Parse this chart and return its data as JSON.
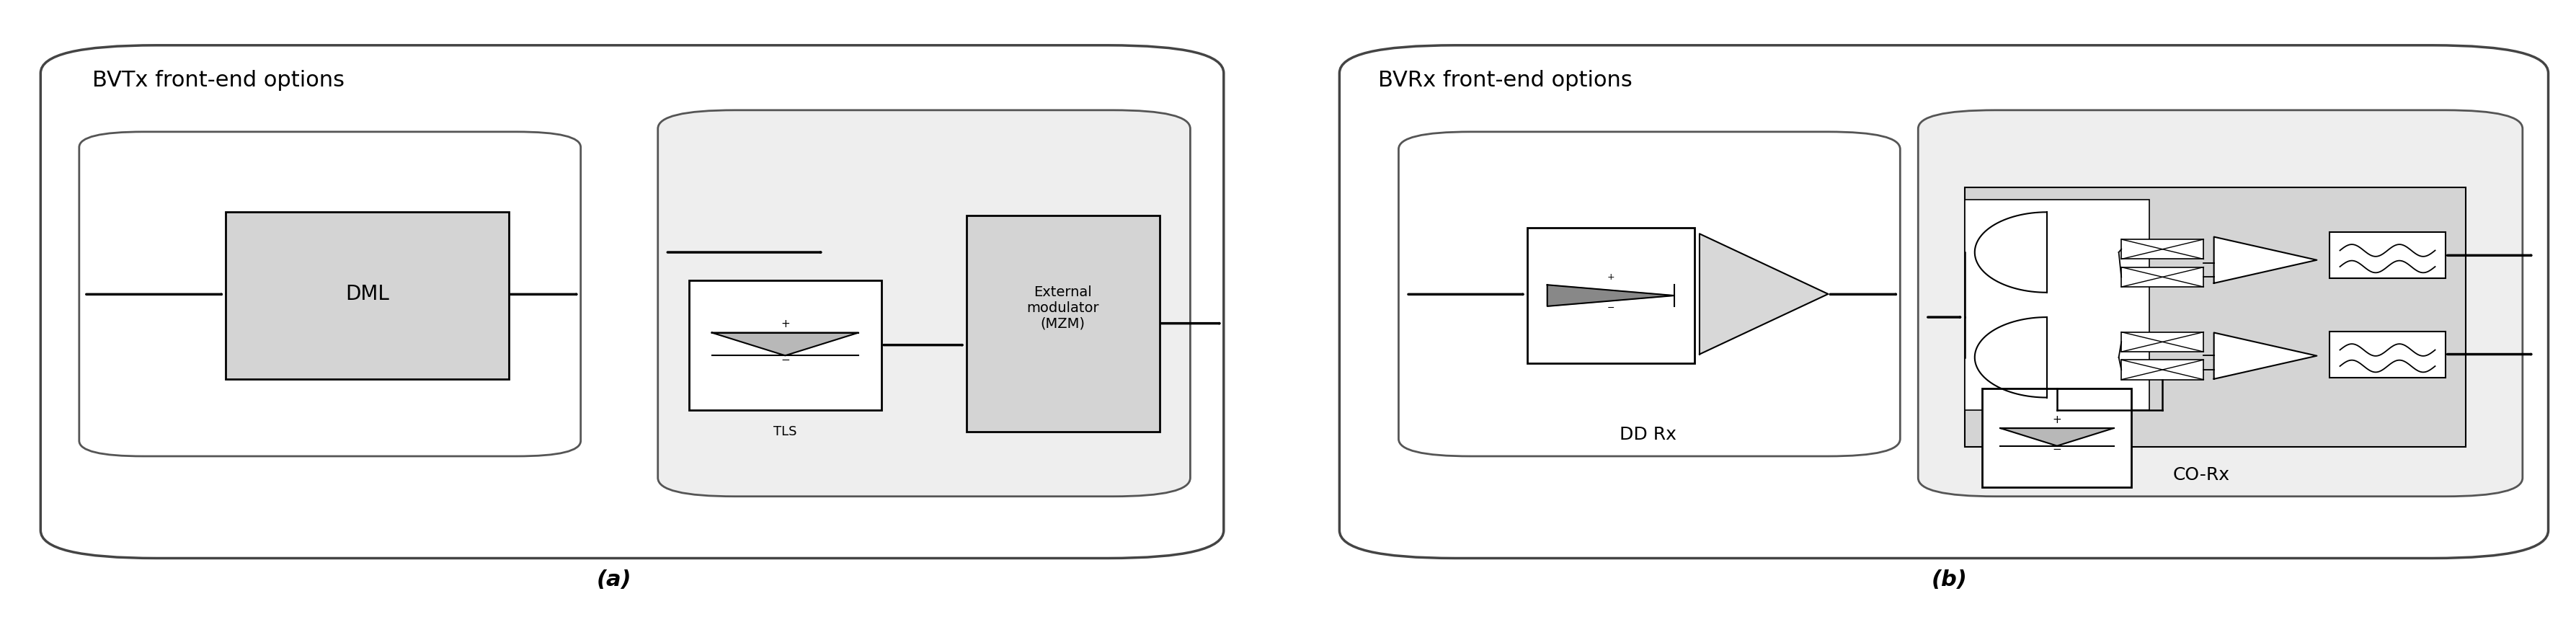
{
  "fig_width": 35.74,
  "fig_height": 8.63,
  "bg_color": "#ffffff",
  "panel_a_title": "BVTx front-end options",
  "panel_b_title": "BVRx front-end options",
  "label_a": "(a)",
  "label_b": "(b)",
  "edge_color_outer": "#444444",
  "edge_color_inner": "#555555",
  "face_gray_light": "#e8e8e8",
  "face_gray_mid": "#cccccc",
  "face_white": "#ffffff"
}
